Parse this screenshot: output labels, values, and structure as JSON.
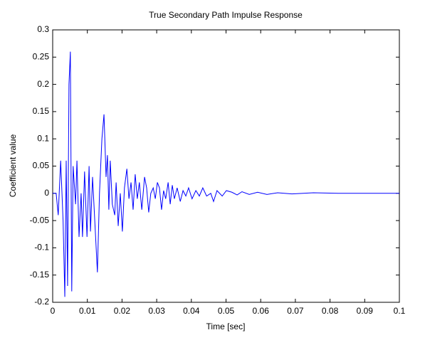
{
  "chart_data": {
    "type": "line",
    "title": "True Secondary Path Impulse Response",
    "xlabel": "Time [sec]",
    "ylabel": "Coefficient value",
    "x": [
      0,
      0.001,
      0.0016,
      0.0023,
      0.003,
      0.0035,
      0.0039,
      0.0043,
      0.0047,
      0.0051,
      0.0055,
      0.0059,
      0.0066,
      0.007,
      0.0076,
      0.0082,
      0.0086,
      0.0092,
      0.0099,
      0.0105,
      0.0109,
      0.0115,
      0.0123,
      0.0129,
      0.0135,
      0.0142,
      0.0148,
      0.0154,
      0.0158,
      0.0162,
      0.0166,
      0.0172,
      0.0179,
      0.0183,
      0.0189,
      0.0195,
      0.0201,
      0.0207,
      0.0214,
      0.022,
      0.0226,
      0.0232,
      0.0238,
      0.0244,
      0.025,
      0.0257,
      0.0265,
      0.0271,
      0.0277,
      0.0283,
      0.029,
      0.0296,
      0.0302,
      0.0308,
      0.0314,
      0.032,
      0.0326,
      0.0333,
      0.0339,
      0.0345,
      0.0351,
      0.0359,
      0.0368,
      0.0376,
      0.0384,
      0.0392,
      0.0402,
      0.0413,
      0.0423,
      0.0433,
      0.0444,
      0.0456,
      0.0464,
      0.0474,
      0.0489,
      0.0501,
      0.0517,
      0.0532,
      0.0546,
      0.0567,
      0.0591,
      0.0618,
      0.0649,
      0.069,
      0.0752,
      0.0823,
      0.0916,
      0.1
    ],
    "series": [
      {
        "color": "#0000ff",
        "values": [
          0,
          0,
          -0.04,
          0.06,
          -0.05,
          -0.19,
          0.06,
          -0.17,
          0.2,
          0.26,
          -0.18,
          0.05,
          -0.02,
          0.06,
          -0.08,
          0,
          -0.08,
          0.04,
          -0.08,
          0.05,
          -0.07,
          0.03,
          -0.07,
          -0.145,
          0,
          0.1,
          0.145,
          0.03,
          0.07,
          -0.03,
          0.06,
          -0.02,
          -0.04,
          0.02,
          -0.06,
          0,
          -0.07,
          0.01,
          0.045,
          -0.01,
          0.02,
          -0.03,
          0.035,
          -0.01,
          0.02,
          -0.03,
          0.03,
          0.01,
          -0.035,
          0,
          0.01,
          -0.01,
          0.02,
          0.01,
          -0.03,
          0.005,
          -0.01,
          0.02,
          -0.02,
          0.015,
          -0.01,
          0.01,
          -0.015,
          0.005,
          -0.005,
          0.01,
          -0.01,
          0.005,
          -0.005,
          0.01,
          -0.005,
          0,
          -0.015,
          0.005,
          -0.005,
          0.005,
          0.002,
          -0.003,
          0.003,
          -0.002,
          0.002,
          -0.002,
          0.001,
          -0.001,
          0.001,
          0,
          0,
          0
        ]
      }
    ],
    "xlim": [
      0,
      0.1
    ],
    "ylim": [
      -0.2,
      0.3
    ],
    "xticks": [
      0,
      0.01,
      0.02,
      0.03,
      0.04,
      0.05,
      0.06,
      0.07,
      0.08,
      0.09,
      0.1
    ],
    "yticks": [
      -0.2,
      -0.15,
      -0.1,
      -0.05,
      0,
      0.05,
      0.1,
      0.15,
      0.2,
      0.25,
      0.3
    ]
  }
}
